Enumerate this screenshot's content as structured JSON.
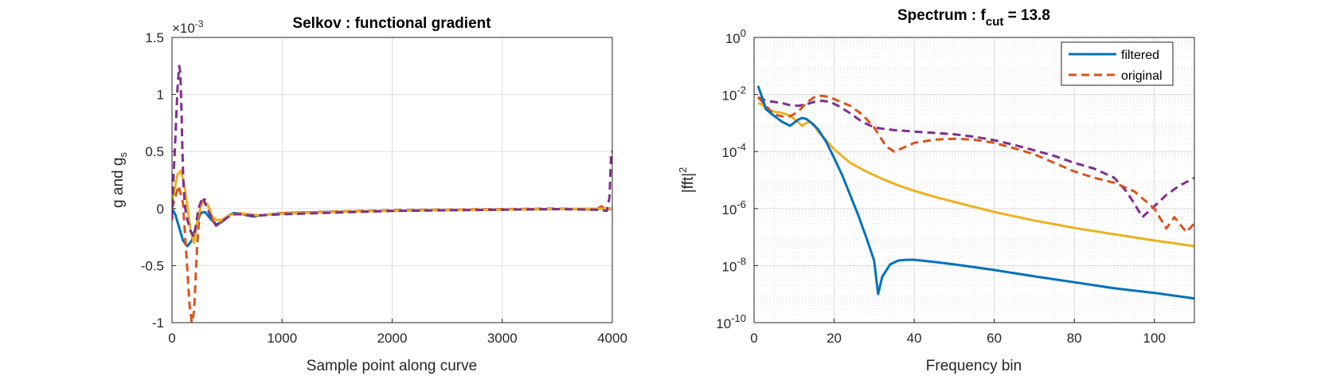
{
  "chart_data": [
    {
      "type": "line",
      "title": "Selkov : functional gradient",
      "xlabel": "Sample point along curve",
      "ylabel": "g and g",
      "ylabel_sub": "s",
      "exponent_label": "×10",
      "exponent_value": "-3",
      "xlim": [
        0,
        4000
      ],
      "ylim": [
        -1,
        1.5
      ],
      "x_ticks": [
        "0",
        "1000",
        "2000",
        "3000",
        "4000"
      ],
      "y_ticks": [
        "-1",
        "-0.5",
        "0",
        "0.5",
        "1",
        "1.5"
      ],
      "grid": true,
      "series": [
        {
          "color": "#0072BD",
          "style": "solid",
          "x": [
            0,
            30,
            60,
            100,
            140,
            180,
            220,
            260,
            300,
            350,
            400,
            450,
            500,
            560,
            620,
            680,
            740,
            800,
            900,
            1000,
            1200,
            1500,
            2000,
            2500,
            3000,
            3500,
            3900,
            4000
          ],
          "y": [
            0.0,
            -0.05,
            -0.15,
            -0.28,
            -0.33,
            -0.28,
            -0.15,
            -0.04,
            -0.03,
            -0.09,
            -0.14,
            -0.12,
            -0.07,
            -0.04,
            -0.04,
            -0.06,
            -0.07,
            -0.06,
            -0.05,
            -0.04,
            -0.035,
            -0.028,
            -0.02,
            -0.014,
            -0.01,
            -0.005,
            -0.002,
            0.0
          ]
        },
        {
          "color": "#D95319",
          "style": "dashed",
          "x": [
            0,
            30,
            60,
            100,
            130,
            160,
            180,
            200,
            230,
            260,
            300,
            340,
            380,
            420,
            460,
            500,
            560,
            620,
            700,
            800,
            1000,
            1500,
            2000,
            3000,
            3500,
            3850,
            3900,
            3950,
            4000
          ],
          "y": [
            0.0,
            0.1,
            0.2,
            0.05,
            -0.4,
            -0.85,
            -1.0,
            -0.9,
            -0.3,
            0.05,
            0.08,
            0.0,
            -0.12,
            -0.14,
            -0.1,
            -0.06,
            -0.05,
            -0.04,
            -0.06,
            -0.06,
            -0.04,
            -0.025,
            -0.015,
            -0.005,
            0.0,
            -0.01,
            0.02,
            -0.01,
            0.0
          ]
        },
        {
          "color": "#EDB120",
          "style": "solid",
          "x": [
            0,
            20,
            50,
            80,
            110,
            140,
            170,
            200,
            240,
            280,
            320,
            360,
            400,
            450,
            500,
            560,
            620,
            700,
            800,
            1000,
            1500,
            2000,
            2500,
            3000,
            3500,
            4000
          ],
          "y": [
            0.05,
            0.15,
            0.3,
            0.33,
            0.22,
            0.02,
            -0.2,
            -0.3,
            -0.05,
            0.06,
            0.04,
            -0.06,
            -0.1,
            -0.1,
            -0.07,
            -0.05,
            -0.04,
            -0.05,
            -0.06,
            -0.045,
            -0.03,
            -0.02,
            -0.014,
            -0.01,
            -0.005,
            0.0
          ]
        },
        {
          "color": "#7E2F8E",
          "style": "dashed",
          "x": [
            0,
            10,
            30,
            50,
            65,
            75,
            85,
            95,
            105,
            120,
            140,
            170,
            200,
            240,
            280,
            320,
            360,
            400,
            450,
            500,
            560,
            620,
            700,
            800,
            1000,
            1500,
            2000,
            3000,
            3500,
            3850,
            3950,
            3975,
            3990,
            4000
          ],
          "y": [
            -0.1,
            0.2,
            0.6,
            1.05,
            1.25,
            1.2,
            0.9,
            0.5,
            0.2,
            0.0,
            -0.1,
            -0.2,
            -0.25,
            0.0,
            0.1,
            0.0,
            -0.08,
            -0.15,
            -0.12,
            -0.08,
            -0.05,
            -0.05,
            -0.06,
            -0.06,
            -0.05,
            -0.035,
            -0.02,
            -0.01,
            -0.005,
            -0.01,
            -0.02,
            0.1,
            0.5,
            0.5
          ]
        }
      ]
    },
    {
      "type": "line",
      "title": "Spectrum : f",
      "title_sub": "cut",
      "title_suffix": " = 13.8",
      "xlabel": "Frequency bin",
      "ylabel": "|fft|",
      "ylabel_sup": "2",
      "log_y": true,
      "xlim": [
        0,
        110
      ],
      "ylim": [
        1e-10,
        1
      ],
      "x_ticks": [
        "0",
        "20",
        "40",
        "60",
        "80",
        "100"
      ],
      "y_ticks_base": "10",
      "y_ticks_exp": [
        "-10",
        "-8",
        "-6",
        "-4",
        "-2",
        "0"
      ],
      "grid": true,
      "legend_position": "top-right",
      "legend": [
        {
          "label": "filtered",
          "color": "#0072BD",
          "style": "solid"
        },
        {
          "label": "original",
          "color": "#D95319",
          "style": "dashed"
        }
      ],
      "series": [
        {
          "name": "filtered",
          "color": "#0072BD",
          "style": "solid",
          "x": [
            1,
            2,
            3,
            5,
            7,
            9,
            11,
            12,
            13,
            14,
            16,
            18,
            20,
            22,
            24,
            26,
            28,
            30,
            31,
            32,
            34,
            36,
            38,
            40,
            45,
            50,
            60,
            70,
            80,
            90,
            100,
            110
          ],
          "y": [
            0.02,
            0.008,
            0.003,
            0.0018,
            0.0011,
            0.0008,
            0.0013,
            0.0015,
            0.0014,
            0.0011,
            0.0006,
            0.00022,
            6e-05,
            1.5e-05,
            3e-06,
            6e-07,
            1e-07,
            1.5e-08,
            1e-09,
            4e-09,
            1.1e-08,
            1.5e-08,
            1.6e-08,
            1.6e-08,
            1.35e-08,
            1.1e-08,
            7e-09,
            4.2e-09,
            2.6e-09,
            1.6e-09,
            1.1e-09,
            7e-10
          ]
        },
        {
          "name": "original",
          "color": "#D95319",
          "style": "dashed",
          "x": [
            1,
            3,
            5,
            7,
            9,
            11,
            13,
            15,
            17,
            19,
            21,
            24,
            27,
            30,
            33,
            35,
            37,
            40,
            45,
            50,
            55,
            60,
            65,
            70,
            75,
            80,
            85,
            90,
            95,
            100,
            103,
            105,
            108,
            110
          ],
          "y": [
            0.008,
            0.004,
            0.002,
            0.0017,
            0.0017,
            0.0025,
            0.005,
            0.008,
            0.009,
            0.008,
            0.006,
            0.004,
            0.002,
            0.0007,
            0.00015,
            0.0001,
            0.00013,
            0.0002,
            0.00026,
            0.00028,
            0.00026,
            0.0002,
            0.00013,
            8e-05,
            4e-05,
            2e-05,
            1.2e-05,
            8e-06,
            4e-06,
            1e-06,
            2e-07,
            5e-07,
            1.5e-07,
            3e-07
          ]
        },
        {
          "color": "#EDB120",
          "style": "solid",
          "x": [
            1,
            2,
            3,
            5,
            7,
            9,
            11,
            12,
            13,
            14,
            15,
            16,
            18,
            20,
            24,
            28,
            32,
            36,
            40,
            45,
            50,
            60,
            70,
            80,
            90,
            100,
            110
          ],
          "y": [
            0.005,
            0.0045,
            0.003,
            0.0025,
            0.0023,
            0.0018,
            0.0011,
            0.0008,
            0.001,
            0.0011,
            0.0009,
            0.0005,
            0.00025,
            0.00012,
            4e-05,
            2e-05,
            1.1e-05,
            6.5e-06,
            4.2e-06,
            2.6e-06,
            1.7e-06,
            7.6e-07,
            3.8e-07,
            2.1e-07,
            1.25e-07,
            7.6e-08,
            4.8e-08
          ]
        },
        {
          "color": "#7E2F8E",
          "style": "dashed",
          "x": [
            1,
            3,
            5,
            7,
            9,
            11,
            13,
            15,
            17,
            19,
            21,
            24,
            27,
            30,
            33,
            36,
            40,
            45,
            50,
            55,
            60,
            65,
            70,
            75,
            80,
            85,
            90,
            93,
            95,
            97,
            100,
            103,
            106,
            110
          ],
          "y": [
            0.008,
            0.006,
            0.0055,
            0.005,
            0.0042,
            0.004,
            0.0045,
            0.0055,
            0.006,
            0.0055,
            0.004,
            0.0022,
            0.0011,
            0.0007,
            0.0006,
            0.00055,
            0.0005,
            0.00045,
            0.0004,
            0.00033,
            0.00025,
            0.00017,
            0.00011,
            7e-05,
            4e-05,
            2.5e-05,
            1.2e-05,
            4e-06,
            1.5e-06,
            5e-07,
            1.2e-06,
            3e-06,
            6e-06,
            1.2e-05
          ]
        }
      ]
    }
  ]
}
